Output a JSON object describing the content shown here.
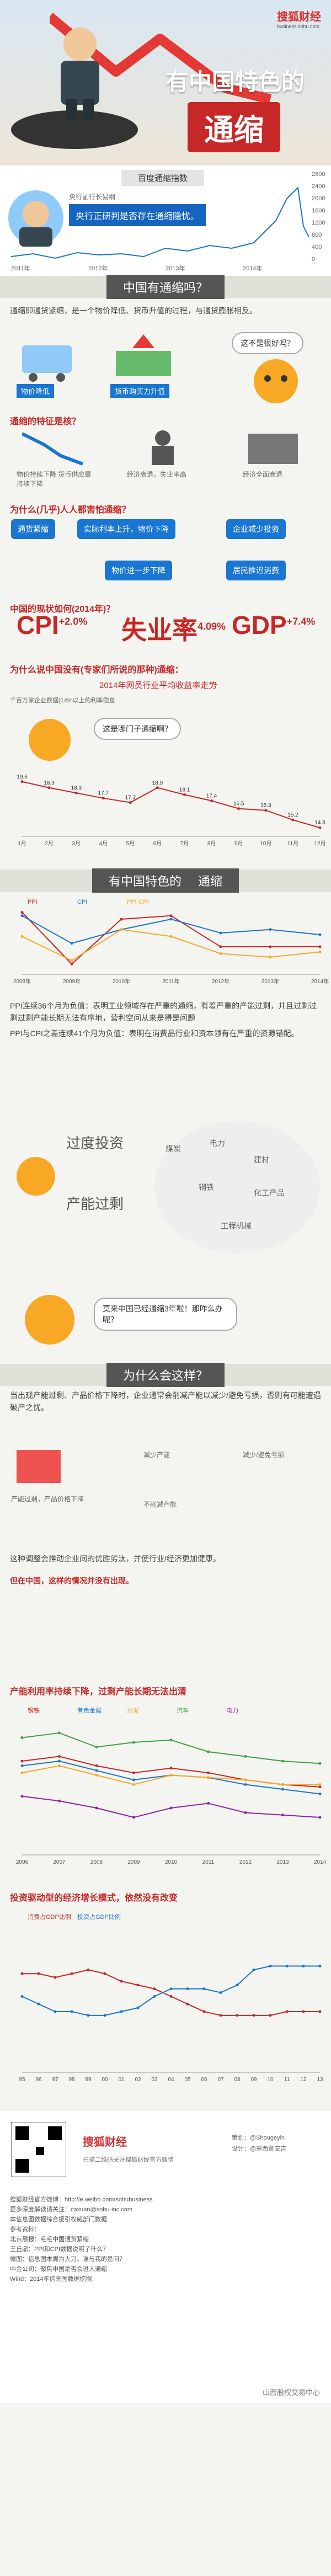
{
  "header": {
    "brand": "搜狐财经",
    "brand_sub": "business.sohu.com",
    "title": "有中国特色的",
    "highlight": "通缩"
  },
  "baidu_index": {
    "label": "百度通缩指数",
    "quote": "央行正研判是否存在通缩隐忧。",
    "source": "央行副行长易纲",
    "years": [
      "2011年",
      "2012年",
      "2013年",
      "2014年"
    ],
    "yaxis": [
      "2800",
      "2400",
      "2000",
      "1600",
      "1200",
      "800",
      "400",
      "0"
    ]
  },
  "section1": {
    "title": "中国有通缩吗？"
  },
  "definition": "通缩即通货紧缩，是一个物价降低、货币升值的过程，与通货膨胀相反。",
  "icons": {
    "drop": "物价降低",
    "up": "货币购买力升值",
    "question": "这不是很好吗？"
  },
  "features_title": "通缩的特征是核？",
  "features": [
    "物价持续下降 货币供应量持续下降",
    "经济衰退，失业率高",
    "经济全面衰退"
  ],
  "why_title": "为什么(几乎)人人都害怕通缩？",
  "flow": [
    "通货紧缩",
    "实际利率上升，物价下降",
    "企业减少投资",
    "物价进一步下降",
    "居民推迟消费"
  ],
  "status_title": "中国的现状如何(2014年)？",
  "kpis": [
    {
      "label": "CPI",
      "value": "+2.0%"
    },
    {
      "label": "失业率",
      "value": "4.09%"
    },
    {
      "label": "GDP",
      "value": "+7.4%"
    }
  ],
  "expert_title": "为什么说中国没有(专家们所说的那种)通缩：",
  "ppi_chart": {
    "title": "2014年网员行业平均收益率走势",
    "subtitle": "千百万家企业数据(14%以上的利率偿息",
    "question": "这是哪门子通缩啊？"
  },
  "chart_data": [
    {
      "type": "line",
      "title": "2014年网员行业平均收益率走势",
      "categories": [
        "1月",
        "2月",
        "3月",
        "4月",
        "5月",
        "6月",
        "7月",
        "8月",
        "9月",
        "10月",
        "11月",
        "12月"
      ],
      "series": [
        {
          "name": "",
          "values": [
            19.6,
            18.9,
            18.3,
            17.7,
            17.2,
            18.9,
            18.1,
            17.4,
            16.5,
            16.3,
            15.2,
            14.3
          ]
        }
      ]
    },
    {
      "type": "line",
      "title": "",
      "categories": [
        "2008年",
        "2009年",
        "2010年",
        "2011年",
        "2012年",
        "2013年",
        "2014年"
      ],
      "series": [
        {
          "name": "PPI",
          "values": [
            8,
            -7,
            6,
            7,
            -2,
            -2,
            -2
          ]
        },
        {
          "name": "CPI",
          "values": [
            7,
            -1,
            3,
            6,
            2,
            3,
            1.5
          ]
        },
        {
          "name": "PPI-CPI",
          "values": [
            1,
            -6,
            3,
            1,
            -4,
            -5,
            -3.5
          ]
        }
      ],
      "ylim": [
        -10,
        10
      ]
    },
    {
      "type": "line",
      "title": "产能利用率持续下降，过剩产能长期无法出清",
      "categories": [
        "2006",
        "2007",
        "2008",
        "2009",
        "2010",
        "2011",
        "2012",
        "2013",
        "2014"
      ],
      "series": [
        {
          "name": "钢铁",
          "values": [
            80,
            82,
            78,
            75,
            77,
            75,
            72,
            70,
            69
          ]
        },
        {
          "name": "有色金属",
          "values": [
            78,
            80,
            76,
            72,
            74,
            73,
            70,
            68,
            66
          ]
        },
        {
          "name": "水泥",
          "values": [
            75,
            78,
            74,
            70,
            74,
            73,
            72,
            70,
            70
          ]
        },
        {
          "name": "汽车",
          "values": [
            90,
            92,
            86,
            88,
            89,
            84,
            82,
            80,
            79
          ]
        },
        {
          "name": "电力",
          "values": [
            65,
            63,
            60,
            56,
            60,
            62,
            58,
            57,
            56
          ]
        }
      ],
      "ylim": [
        40,
        100
      ]
    },
    {
      "type": "line",
      "title": "投资驱动型的经济增长模式，依然没有改变",
      "categories": [
        "95",
        "96",
        "97",
        "98",
        "99",
        "00",
        "01",
        "02",
        "03",
        "04",
        "05",
        "06",
        "07",
        "08",
        "09",
        "10",
        "11",
        "12",
        "13"
      ],
      "series": [
        {
          "name": "消费占GDP比例",
          "values": [
            46,
            46,
            45,
            46,
            47,
            46,
            44,
            43,
            42,
            40,
            38,
            36,
            35,
            35,
            35,
            35,
            36,
            36,
            36
          ]
        },
        {
          "name": "投资占GDP比例",
          "values": [
            40,
            38,
            36,
            36,
            35,
            35,
            36,
            37,
            40,
            42,
            42,
            42,
            41,
            43,
            47,
            48,
            48,
            48,
            48
          ]
        }
      ],
      "ylim": [
        20,
        60
      ]
    }
  ],
  "ppi_note1": "PPI连续36个月为负值：表明工业领域存在严重的通缩，有着严重的产能过剩，并且过剩过剩过剩产能长期无法有序地，营利空间从来是得是问题",
  "ppi_note2": "PPI与CPI之差连续41个月为负值：表明在消费品行业和资本领有在严重的资源错配。",
  "overinvest": {
    "a": "过度投资",
    "b": "产能过剩",
    "items": [
      "煤炭",
      "电力",
      "钢铁",
      "建材",
      "化工产品",
      "工程机械"
    ]
  },
  "bubble_q": "莫来中国已经通缩3年啦！那咋么办呢？",
  "section2": {
    "title": "为什么会这样？"
  },
  "reason": "当出现产能过剩、产品价格下降时，企业通常会削减产能以减少/避免亏损，否则有可能遭遇破产之忧。",
  "reason_labels": {
    "a": "产能过剩，产品价格下降",
    "b": "减少产能",
    "c": "减少/避免亏损",
    "d": "不削减产能"
  },
  "reason_note1": "这种调整会推动企业间的优胜劣汰，并使行业/经济更加健康。",
  "reason_note2": "但在中国，这样的情况并没有出现。",
  "footer": {
    "brand": "搜狐财经",
    "author": "策划：@Shougeyin",
    "design": "设计：@寒西赞安吉",
    "lines": [
      "搜狐财经官方微博：http://e.weibo.com/sohubusiness",
      "更多深度解读请关注：caxuan@sohu-inc.com",
      "本信息图数据综合援引权威部门数据",
      "参考资料：",
      "北京晨报：毛毛中国通货紧缩",
      "王丘鼎：PPI和CPI数据说明了什么？",
      "微图：信息图本周为大刀。谁与我的是问？",
      "中金公司：聚焦中国是否会进入通缩",
      "Wind：2014年信息图数据挖掘"
    ],
    "qr": "扫描二维码关注搜狐财经官方微信",
    "copyright": "山西股权交易中心"
  }
}
